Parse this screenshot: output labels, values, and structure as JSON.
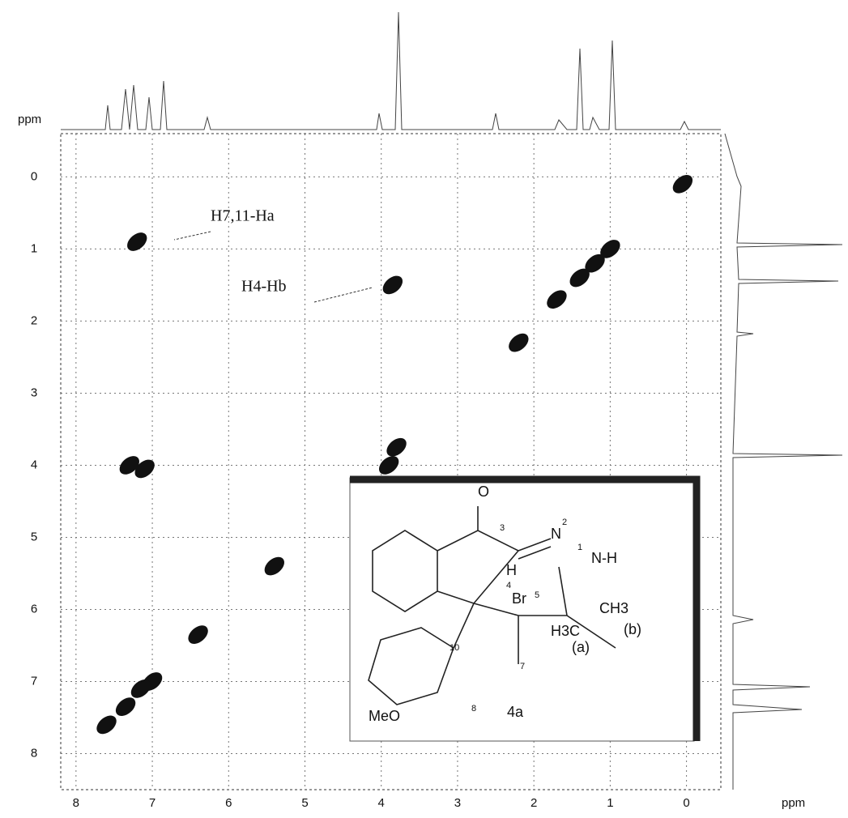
{
  "chart_data": {
    "type": "scatter",
    "x_label": "ppm",
    "y_label": "ppm",
    "xlim": [
      8.2,
      -0.45
    ],
    "ylim": [
      -0.6,
      8.5
    ],
    "xticks": [
      8,
      7,
      6,
      5,
      4,
      3,
      2,
      1,
      0
    ],
    "yticks": [
      0,
      1,
      2,
      3,
      4,
      5,
      6,
      7,
      8
    ],
    "grid": true,
    "color": "#111111",
    "x": [
      0.05,
      1.0,
      1.2,
      1.4,
      1.7,
      2.2,
      3.8,
      3.9,
      5.4,
      6.4,
      7.0,
      7.15,
      7.35,
      7.6,
      7.2,
      3.85,
      7.1,
      7.3
    ],
    "values": [
      0.1,
      1.0,
      1.2,
      1.4,
      1.7,
      2.3,
      3.75,
      4.0,
      5.4,
      6.35,
      7.0,
      7.1,
      7.35,
      7.6,
      0.9,
      1.5,
      4.05,
      4.0
    ],
    "annotations": [
      "H7,11-Ha",
      "H4-Hb"
    ],
    "inset": {
      "labels": [
        "O",
        "3",
        "N",
        "2",
        "1",
        "N-H",
        "H",
        "4",
        "Br",
        "5",
        "CH3",
        "(b)",
        "H3C",
        "(a)",
        "10",
        "7",
        "8",
        "MeO",
        "4a"
      ]
    }
  }
}
